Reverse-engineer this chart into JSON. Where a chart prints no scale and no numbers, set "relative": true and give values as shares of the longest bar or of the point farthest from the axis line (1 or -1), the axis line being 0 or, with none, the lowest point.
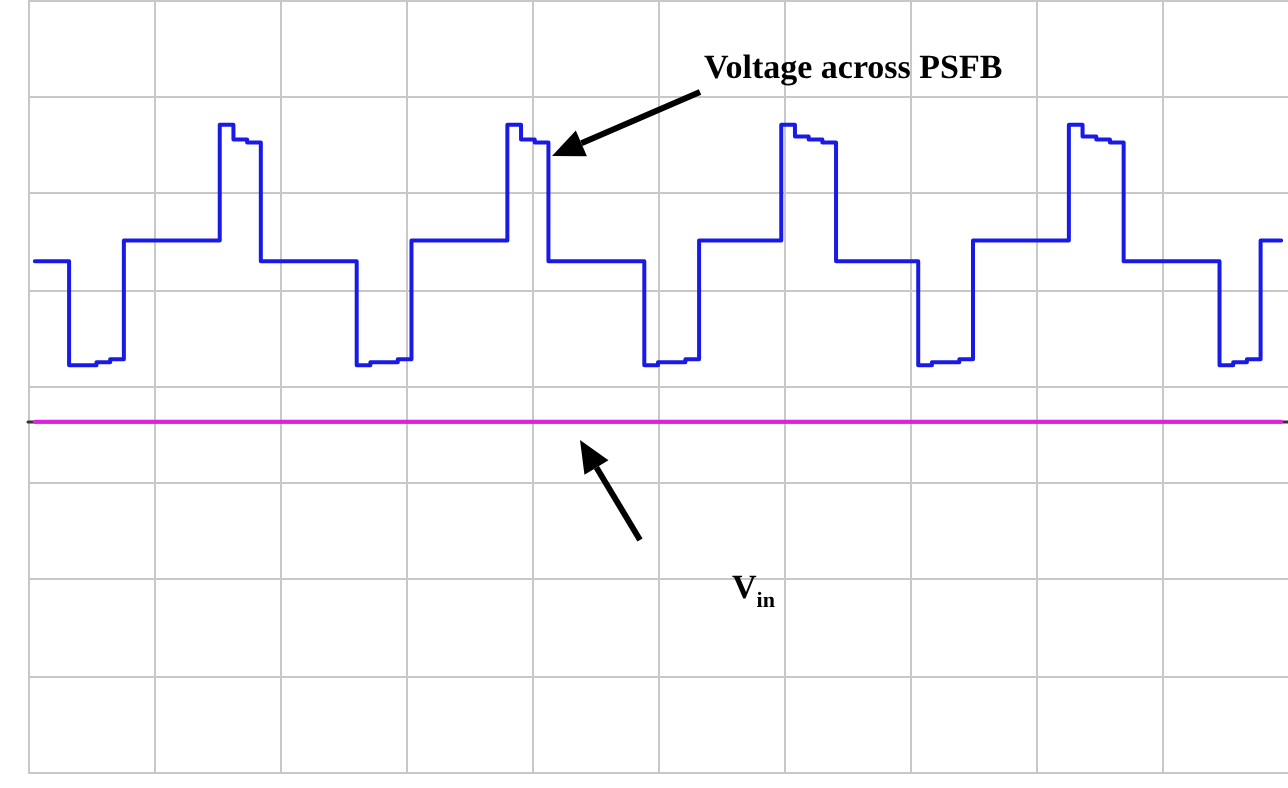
{
  "chart_data": {
    "type": "step",
    "relative": true,
    "grid": true,
    "legend": false,
    "line_style": "solid",
    "annotations": [
      "V$_{in}$"
    ],
    "categories": [
      null,
      null,
      null,
      null,
      null,
      null,
      null,
      null,
      null,
      null,
      null,
      null,
      null,
      null,
      null,
      null,
      null,
      null,
      null,
      null,
      null,
      null,
      null,
      null,
      null,
      null,
      null,
      null,
      null,
      null,
      null,
      null,
      null,
      null,
      null,
      null,
      null,
      null,
      null,
      null,
      null,
      null,
      null,
      null,
      null,
      null,
      null,
      null,
      null,
      null,
      null,
      null,
      null,
      null,
      null,
      null,
      null,
      null,
      null,
      null,
      null,
      null,
      null,
      null,
      null,
      null,
      null,
      null,
      null,
      null,
      null,
      null,
      null,
      null,
      null,
      null,
      null,
      null,
      null,
      null,
      null,
      null,
      null,
      null,
      null,
      null,
      null,
      null,
      null,
      null,
      null,
      null
    ],
    "series": [
      {
        "name": "Voltage across PSFB",
        "color": "#1a1ae6",
        "values": [
          0.54,
          0.54,
          0.54,
          0.19,
          0.19,
          0.2,
          0.21,
          0.61,
          0.61,
          0.61,
          0.61,
          0.61,
          0.61,
          0.61,
          1,
          0.95,
          0.94,
          0.54,
          0.54,
          0.54,
          0.54,
          0.54,
          0.54,
          0.54,
          0.19,
          0.2,
          0.2,
          0.21,
          0.61,
          0.61,
          0.61,
          0.61,
          0.61,
          0.61,
          0.61,
          1,
          0.95,
          0.94,
          0.54,
          0.54,
          0.54,
          0.54,
          0.54,
          0.54,
          0.54,
          0.19,
          0.2,
          0.2,
          0.21,
          0.61,
          0.61,
          0.61,
          0.61,
          0.61,
          0.61,
          1,
          0.96,
          0.95,
          0.94,
          0.54,
          0.54,
          0.54,
          0.54,
          0.54,
          0.54,
          0.19,
          0.2,
          0.2,
          0.21,
          0.61,
          0.61,
          0.61,
          0.61,
          0.61,
          0.61,
          0.61,
          1,
          0.96,
          0.95,
          0.94,
          0.54,
          0.54,
          0.54,
          0.54,
          0.54,
          0.54,
          0.54,
          0.19,
          0.2,
          0.21,
          0.61,
          0.61
        ]
      },
      {
        "color": "#e020e0",
        "values": [
          0,
          0,
          0,
          0,
          0,
          0,
          0,
          0,
          0,
          0,
          0,
          0,
          0,
          0,
          0,
          0,
          0,
          0,
          0,
          0,
          0,
          0,
          0,
          0,
          0,
          0,
          0,
          0,
          0,
          0,
          0,
          0,
          0,
          0,
          0,
          0,
          0,
          0,
          0,
          0,
          0,
          0,
          0,
          0,
          0,
          0,
          0,
          0,
          0,
          0,
          0,
          0,
          0,
          0,
          0,
          0,
          0,
          0,
          0,
          0,
          0,
          0,
          0,
          0,
          0,
          0,
          0,
          0,
          0,
          0,
          0,
          0,
          0,
          0,
          0,
          0,
          0,
          0,
          0,
          0,
          0,
          0,
          0,
          0,
          0,
          0,
          0,
          0,
          0,
          0,
          0,
          0
        ]
      }
    ]
  }
}
